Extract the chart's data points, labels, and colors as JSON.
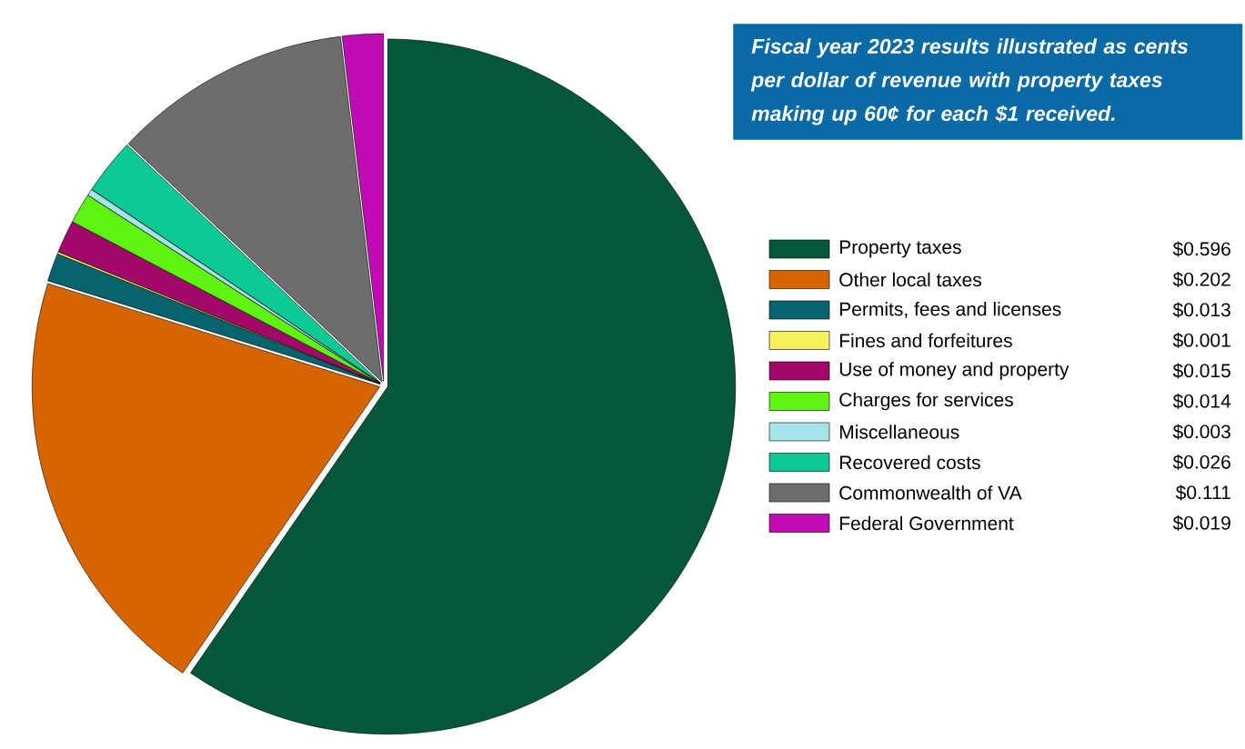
{
  "chart_data": {
    "type": "pie",
    "title": "Fiscal year 2023 results illustrated as cents per dollar of revenue with property taxes making up 60¢ for each $1 received.",
    "categories": [
      "Property taxes",
      "Other local taxes",
      "Permits, fees and licenses",
      "Fines and forfeitures",
      "Use of money and property",
      "Charges for services",
      "Miscellaneous",
      "Recovered costs",
      "Commonwealth of VA",
      "Federal Government"
    ],
    "values": [
      0.596,
      0.202,
      0.013,
      0.001,
      0.015,
      0.014,
      0.003,
      0.026,
      0.111,
      0.019
    ],
    "value_labels": [
      "$0.596",
      "$0.202",
      "$0.013",
      "$0.001",
      "$0.015",
      "$0.014",
      "$0.003",
      "$0.026",
      "$0.111",
      "$0.019"
    ],
    "colors": [
      "#03573a",
      "#d66400",
      "#07646f",
      "#f6f05c",
      "#a4076a",
      "#5ef310",
      "#a4e4ea",
      "#0cc995",
      "#6d6d6d",
      "#c10bb5"
    ],
    "legend": "right"
  }
}
